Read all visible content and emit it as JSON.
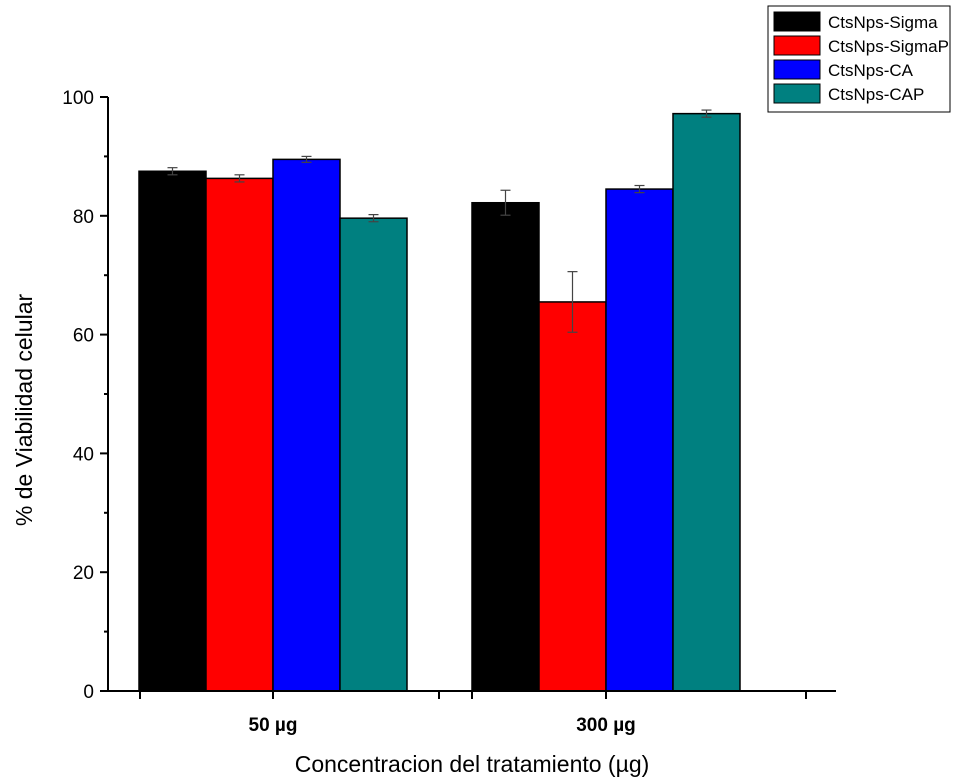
{
  "chart_data": {
    "type": "bar",
    "categories": [
      "50 µg",
      "300 µg"
    ],
    "series": [
      {
        "name": "CtsNps-Sigma",
        "color": "#000000",
        "values": [
          87.5,
          82.2
        ],
        "errors": [
          0.6,
          2.1
        ]
      },
      {
        "name": "CtsNps-SigmaP",
        "color": "#ff0000",
        "values": [
          86.3,
          65.5
        ],
        "errors": [
          0.6,
          5.1
        ]
      },
      {
        "name": "CtsNps-CA",
        "color": "#0000ff",
        "values": [
          89.5,
          84.5
        ],
        "errors": [
          0.5,
          0.6
        ]
      },
      {
        "name": "CtsNps-CAP",
        "color": "#008080",
        "values": [
          79.6,
          97.2
        ],
        "errors": [
          0.6,
          0.6
        ]
      }
    ],
    "xlabel": "Concentracion del tratamiento (µg)",
    "ylabel": "% de Viabilidad celular",
    "ylim": [
      0,
      100
    ],
    "yticks": [
      "0",
      "20",
      "40",
      "60",
      "80",
      "100"
    ],
    "grid": false,
    "legend_position": "top-right"
  }
}
